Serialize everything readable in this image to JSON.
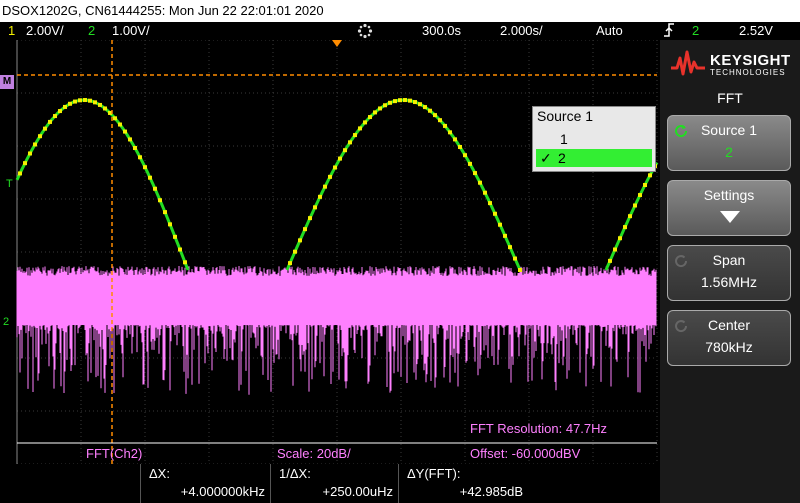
{
  "title": "DSOX1202G, CN61444255: Mon Jun 22 22:01:01 2020",
  "status": {
    "ch1_num": "1",
    "ch1_scale": "2.00V/",
    "ch2_num": "2",
    "ch2_scale": "1.00V/",
    "time_delay": "300.0s",
    "time_scale": "2.000s/",
    "trigger_mode": "Auto",
    "trigger_source": "2",
    "trigger_level": "2.52V"
  },
  "scope": {
    "ch1_marker": "1",
    "ch2_marker": "2",
    "math_marker": "M",
    "trigger_marker": "T",
    "fft_resolution": "FFT Resolution: 47.7Hz"
  },
  "bottom": {
    "source": "FFT(Ch2)",
    "scale": "Scale: 20dB/",
    "offset": "Offset: -60.000dBV"
  },
  "measurements": {
    "dx_label": "ΔX:",
    "dx_value": "+4.000000kHz",
    "inv_dx_label": "1/ΔX:",
    "inv_dx_value": "+250.00uHz",
    "dy_label": "ΔY(FFT):",
    "dy_value": "+42.985dB"
  },
  "sidebar": {
    "brand": "KEYSIGHT",
    "brand_sub": "TECHNOLOGIES",
    "menu_title": "FFT",
    "buttons": [
      {
        "label": "Source 1",
        "value": "2"
      },
      {
        "label": "Settings",
        "value": ""
      },
      {
        "label": "Span",
        "value": "1.56MHz"
      },
      {
        "label": "Center",
        "value": "780kHz"
      }
    ]
  },
  "popup": {
    "title": "Source 1",
    "options": [
      "1",
      "2"
    ],
    "selected_mark": "✓"
  },
  "colors": {
    "ch1": "#f4f000",
    "ch2": "#22dd22",
    "fft": "#ff80ff",
    "cursor": "#ff8c00"
  }
}
